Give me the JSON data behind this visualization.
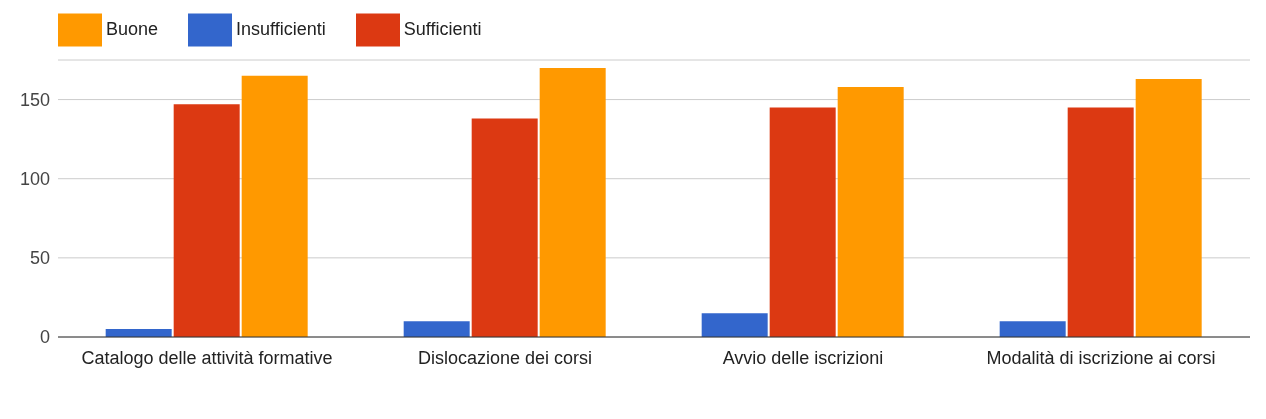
{
  "chart_data": {
    "type": "bar",
    "categories": [
      "Catalogo delle attività formative",
      "Dislocazione dei corsi",
      "Avvio delle iscrizioni",
      "Modalità di iscrizione ai corsi"
    ],
    "series": [
      {
        "name": "Insufficienti",
        "color": "#3366cc",
        "values": [
          5,
          10,
          15,
          10
        ]
      },
      {
        "name": "Sufficienti",
        "color": "#dc3912",
        "values": [
          147,
          138,
          145,
          145
        ]
      },
      {
        "name": "Buone",
        "color": "#ff9900",
        "values": [
          165,
          170,
          158,
          163
        ]
      }
    ],
    "ylim": [
      0,
      175
    ],
    "yticks": [
      0,
      50,
      100,
      150
    ],
    "grid": "y",
    "legend": "top left"
  }
}
